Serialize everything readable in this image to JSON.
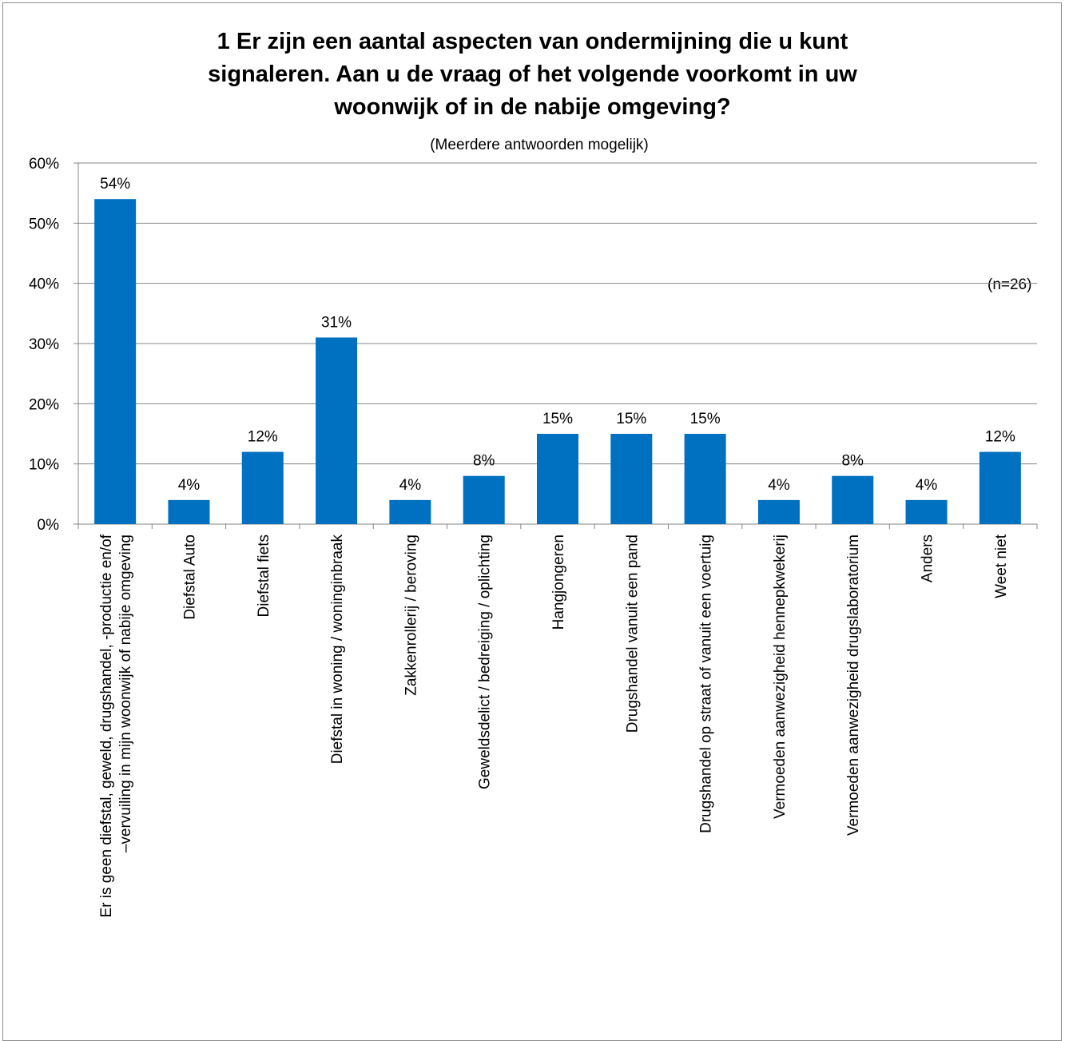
{
  "chart_data": {
    "type": "bar",
    "title_lines": [
      "1 Er zijn een aantal aspecten van ondermijning die u kunt",
      "signaleren. Aan u de vraag of het volgende voorkomt in uw",
      "woonwijk of in de nabije omgeving?"
    ],
    "subtitle": "(Meerdere antwoorden mogelijk)",
    "annotation": "(n=26)",
    "categories": [
      [
        "Er is geen diefstal, geweld, drugshandel, -productie en/of",
        "–vervuiling in mijn woonwijk of nabije omgeving"
      ],
      [
        "Diefstal Auto"
      ],
      [
        "Diefstal fiets"
      ],
      [
        "Diefstal in woning / woninginbraak"
      ],
      [
        "Zakkenrollerij / beroving"
      ],
      [
        "Geweldsdelict / bedreiging / oplichting"
      ],
      [
        "Hangjongeren"
      ],
      [
        "Drugshandel vanuit een pand"
      ],
      [
        "Drugshandel op straat of vanuit een voertuig"
      ],
      [
        "Vermoeden aanwezigheid hennepkwekerij"
      ],
      [
        "Vermoeden aanwezigheid drugslaboratorium"
      ],
      [
        "Anders"
      ],
      [
        "Weet niet"
      ]
    ],
    "values": [
      54,
      4,
      12,
      31,
      4,
      8,
      15,
      15,
      15,
      4,
      8,
      4,
      12
    ],
    "data_labels": [
      "54%",
      "4%",
      "12%",
      "31%",
      "4%",
      "8%",
      "15%",
      "15%",
      "15%",
      "4%",
      "8%",
      "4%",
      "12%"
    ],
    "ylim": [
      0,
      60
    ],
    "yticks": [
      0,
      10,
      20,
      30,
      40,
      50,
      60
    ],
    "ytick_labels": [
      "0%",
      "10%",
      "20%",
      "30%",
      "40%",
      "50%",
      "60%"
    ],
    "bar_color": "#0070C0",
    "grid": true,
    "legend": "none"
  }
}
